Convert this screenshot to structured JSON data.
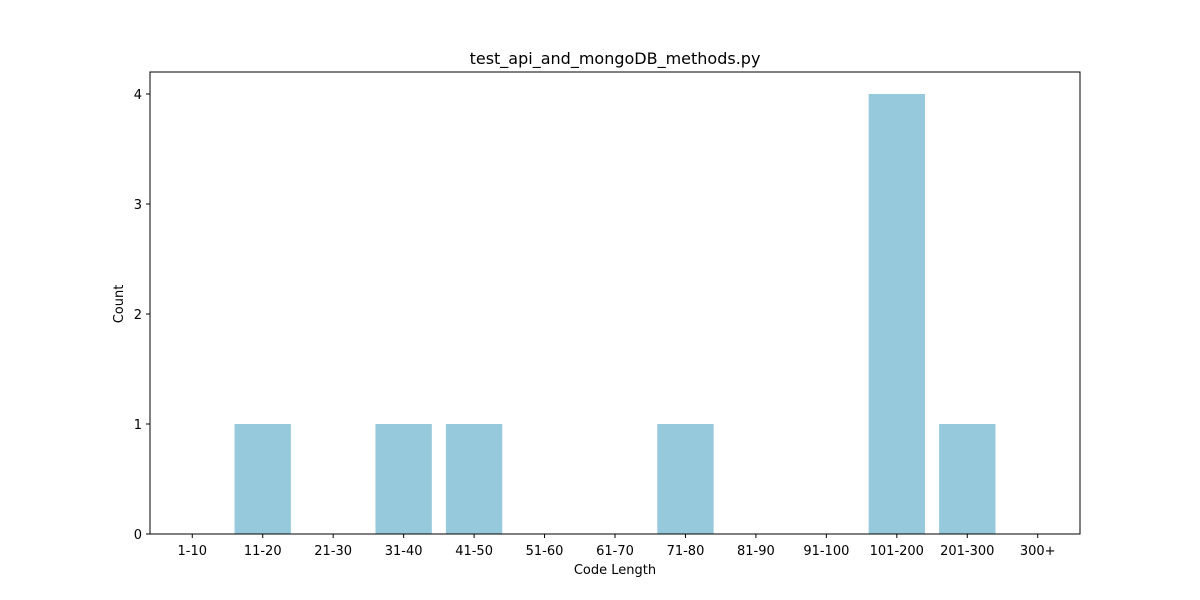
{
  "chart_data": {
    "type": "bar",
    "title": "test_api_and_mongoDB_methods.py",
    "xlabel": "Code Length",
    "ylabel": "Count",
    "categories": [
      "1-10",
      "11-20",
      "21-30",
      "31-40",
      "41-50",
      "51-60",
      "61-70",
      "71-80",
      "81-90",
      "91-100",
      "101-200",
      "201-300",
      "300+"
    ],
    "values": [
      0,
      1,
      0,
      1,
      1,
      0,
      0,
      1,
      0,
      0,
      4,
      1,
      0
    ],
    "yticks": [
      0,
      1,
      2,
      3,
      4
    ],
    "ylim": [
      0,
      4.2
    ],
    "grid": false,
    "bar_color": "#96c9dc"
  }
}
